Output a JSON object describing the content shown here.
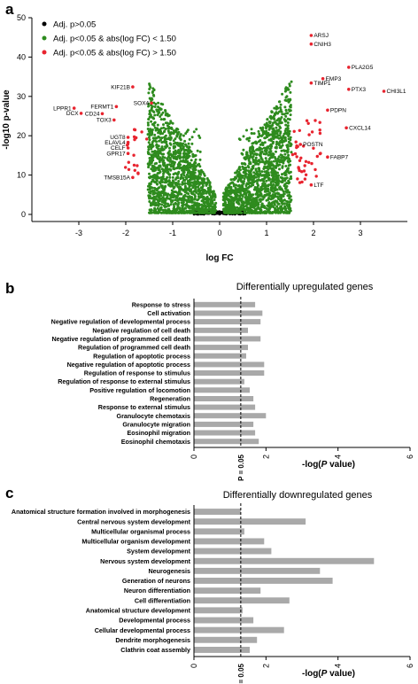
{
  "colors": {
    "black": "#000000",
    "green": "#2e8b1e",
    "red": "#e8242f",
    "bar": "#a9a9a9"
  },
  "panels": {
    "a": "a",
    "b": "b",
    "c": "c"
  },
  "chart_data": [
    {
      "type": "scatter",
      "panel": "a",
      "xlabel": "log FC",
      "ylabel": "-log10  p-value",
      "xlim": [
        -4,
        4
      ],
      "ylim": [
        0,
        50
      ],
      "xticks": [
        "-3",
        "-2",
        "-1",
        "0",
        "1",
        "2",
        "3"
      ],
      "yticks": [
        "0",
        "10",
        "20",
        "30",
        "40",
        "50"
      ],
      "legend": [
        {
          "label": "Adj. p>0.05",
          "color": "black"
        },
        {
          "label": "Adj. p<0.05 & abs(log FC) < 1.50",
          "color": "green"
        },
        {
          "label": "Adj. p<0.05 & abs(log FC) > 1.50",
          "color": "red"
        }
      ],
      "labeled_genes": [
        {
          "name": "ARSJ",
          "x": 1.95,
          "y": 45.5
        },
        {
          "name": "CNIH3",
          "x": 1.95,
          "y": 43.3
        },
        {
          "name": "PLA2G5",
          "x": 2.75,
          "y": 37.4
        },
        {
          "name": "EMP3",
          "x": 2.2,
          "y": 34.5
        },
        {
          "name": "TIMP1",
          "x": 1.95,
          "y": 33.4
        },
        {
          "name": "PTX3",
          "x": 2.75,
          "y": 31.8
        },
        {
          "name": "CHI3L1",
          "x": 3.5,
          "y": 31.3
        },
        {
          "name": "PDPN",
          "x": 2.3,
          "y": 26.5
        },
        {
          "name": "CXCL14",
          "x": 2.7,
          "y": 22.0
        },
        {
          "name": "POSTN",
          "x": 1.72,
          "y": 17.8
        },
        {
          "name": "FABP7",
          "x": 2.3,
          "y": 14.6
        },
        {
          "name": "LTF",
          "x": 1.95,
          "y": 7.5
        },
        {
          "name": "KIF21B",
          "x": -1.85,
          "y": 32.4
        },
        {
          "name": "SOX4",
          "x": -1.45,
          "y": 28.3
        },
        {
          "name": "LPPR1",
          "x": -3.1,
          "y": 27.0
        },
        {
          "name": "FERMT1",
          "x": -2.2,
          "y": 27.4
        },
        {
          "name": "DCX",
          "x": -2.95,
          "y": 25.7
        },
        {
          "name": "CD24",
          "x": -2.5,
          "y": 25.6
        },
        {
          "name": "TOX3",
          "x": -2.25,
          "y": 24.0
        },
        {
          "name": "UGT8",
          "x": -1.95,
          "y": 19.6
        },
        {
          "name": "ELAVL4",
          "x": -1.95,
          "y": 18.3
        },
        {
          "name": "CELF",
          "x": -1.95,
          "y": 16.9
        },
        {
          "name": "GPR17",
          "x": -1.95,
          "y": 15.5
        },
        {
          "name": "TMSB15A",
          "x": -1.85,
          "y": 9.4
        }
      ]
    },
    {
      "type": "bar",
      "panel": "b",
      "title": "Differentially upregulated genes",
      "xlabel_prefix": "-log(",
      "xlabel_italic": "P",
      "xlabel_suffix": " value)",
      "xlim": [
        0,
        6
      ],
      "xticks": [
        "0",
        "2",
        "4",
        "6"
      ],
      "threshold": 1.3,
      "threshold_label": "P = 0.05",
      "categories": [
        "Response to stress",
        "Cell activation",
        "Negative regulation of developmental process",
        "Negative regulation of cell death",
        "Negative regulation of programmed cell death",
        "Regulation of programmed cell death",
        "Regulation of apoptotic process",
        "Negative regulation of apoptotic process",
        "Regulation of response to stimulus",
        "Regulation of response to external stimulus",
        "Positive regulation of locomotion",
        "Regeneration",
        "Response to external stimulus",
        "Granulocyte chemotaxis",
        "Granulocyte migration",
        "Eosinophil migration",
        "Eosinophil chemotaxis"
      ],
      "values": [
        1.7,
        1.9,
        1.85,
        1.5,
        1.85,
        1.5,
        1.45,
        1.95,
        1.95,
        1.4,
        1.55,
        1.65,
        1.7,
        2.0,
        1.65,
        1.7,
        1.8
      ]
    },
    {
      "type": "bar",
      "panel": "c",
      "title": "Differentially downregulated genes",
      "xlabel_prefix": "-log(",
      "xlabel_italic": "P",
      "xlabel_suffix": " value)",
      "xlim": [
        0,
        6
      ],
      "xticks": [
        "0",
        "2",
        "4",
        "6"
      ],
      "threshold": 1.3,
      "threshold_label": "P = 0.05",
      "categories": [
        "Anatomical structure formation involved in morphogenesis",
        "Central nervous system development",
        "Multicellular organismal process",
        "Multicellular organism development",
        "System development",
        "Nervous system development",
        "Neurogenesis",
        "Generation of neurons",
        "Neuron differentiation",
        "Cell differentiation",
        "Anatomical structure development",
        "Developmental process",
        "Cellular developmental process",
        "Dendrite morphogenesis",
        "Clathrin coat assembly"
      ],
      "values": [
        1.3,
        3.1,
        1.4,
        1.95,
        2.15,
        5.0,
        3.5,
        3.85,
        1.85,
        2.65,
        1.35,
        1.65,
        2.5,
        1.75,
        1.55
      ]
    }
  ]
}
